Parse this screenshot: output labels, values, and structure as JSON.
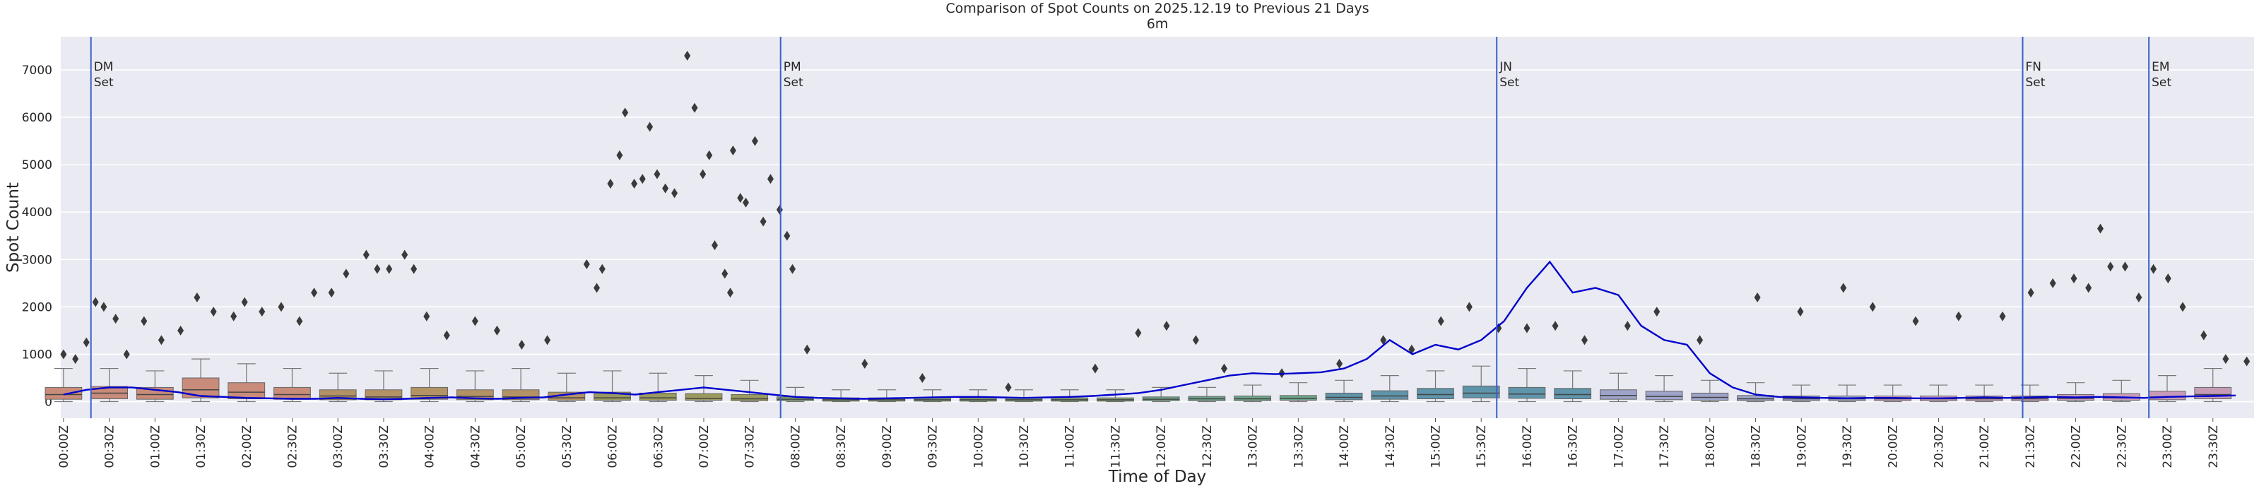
{
  "chart_data": {
    "type": "box",
    "title": "Comparison of Spot Counts on 2025.12.19 to Previous 21 Days",
    "subtitle": "6m",
    "xlabel": "Time of Day",
    "ylabel": "Spot Count",
    "xlim": [
      -0.03,
      23.95
    ],
    "ylim": [
      -350,
      7700
    ],
    "grid": true,
    "yticks": [
      0,
      1000,
      2000,
      3000,
      4000,
      5000,
      6000,
      7000
    ],
    "xticks": [
      {
        "value": 0,
        "label": "00:00Z"
      },
      {
        "value": 0.5,
        "label": "00:30Z"
      },
      {
        "value": 1,
        "label": "01:00Z"
      },
      {
        "value": 1.5,
        "label": "01:30Z"
      },
      {
        "value": 2,
        "label": "02:00Z"
      },
      {
        "value": 2.5,
        "label": "02:30Z"
      },
      {
        "value": 3,
        "label": "03:00Z"
      },
      {
        "value": 3.5,
        "label": "03:30Z"
      },
      {
        "value": 4,
        "label": "04:00Z"
      },
      {
        "value": 4.5,
        "label": "04:30Z"
      },
      {
        "value": 5,
        "label": "05:00Z"
      },
      {
        "value": 5.5,
        "label": "05:30Z"
      },
      {
        "value": 6,
        "label": "06:00Z"
      },
      {
        "value": 6.5,
        "label": "06:30Z"
      },
      {
        "value": 7,
        "label": "07:00Z"
      },
      {
        "value": 7.5,
        "label": "07:30Z"
      },
      {
        "value": 8,
        "label": "08:00Z"
      },
      {
        "value": 8.5,
        "label": "08:30Z"
      },
      {
        "value": 9,
        "label": "09:00Z"
      },
      {
        "value": 9.5,
        "label": "09:30Z"
      },
      {
        "value": 10,
        "label": "10:00Z"
      },
      {
        "value": 10.5,
        "label": "10:30Z"
      },
      {
        "value": 11,
        "label": "11:00Z"
      },
      {
        "value": 11.5,
        "label": "11:30Z"
      },
      {
        "value": 12,
        "label": "12:00Z"
      },
      {
        "value": 12.5,
        "label": "12:30Z"
      },
      {
        "value": 13,
        "label": "13:00Z"
      },
      {
        "value": 13.5,
        "label": "13:30Z"
      },
      {
        "value": 14,
        "label": "14:00Z"
      },
      {
        "value": 14.5,
        "label": "14:30Z"
      },
      {
        "value": 15,
        "label": "15:00Z"
      },
      {
        "value": 15.5,
        "label": "15:30Z"
      },
      {
        "value": 16,
        "label": "16:00Z"
      },
      {
        "value": 16.5,
        "label": "16:30Z"
      },
      {
        "value": 17,
        "label": "17:00Z"
      },
      {
        "value": 17.5,
        "label": "17:30Z"
      },
      {
        "value": 18,
        "label": "18:00Z"
      },
      {
        "value": 18.5,
        "label": "18:30Z"
      },
      {
        "value": 19,
        "label": "19:00Z"
      },
      {
        "value": 19.5,
        "label": "19:30Z"
      },
      {
        "value": 20,
        "label": "20:00Z"
      },
      {
        "value": 20.5,
        "label": "20:30Z"
      },
      {
        "value": 21,
        "label": "21:00Z"
      },
      {
        "value": 21.5,
        "label": "21:30Z"
      },
      {
        "value": 22,
        "label": "22:00Z"
      },
      {
        "value": 22.5,
        "label": "22:30Z"
      },
      {
        "value": 23,
        "label": "23:00Z"
      },
      {
        "value": 23.5,
        "label": "23:30Z"
      }
    ],
    "boxes": {
      "x": [
        0,
        0.5,
        1,
        1.5,
        2,
        2.5,
        3,
        3.5,
        4,
        4.5,
        5,
        5.5,
        6,
        6.5,
        7,
        7.5,
        8,
        8.5,
        9,
        9.5,
        10,
        10.5,
        11,
        11.5,
        12,
        12.5,
        13,
        13.5,
        14,
        14.5,
        15,
        15.5,
        16,
        16.5,
        17,
        17.5,
        18,
        18.5,
        19,
        19.5,
        20,
        20.5,
        21,
        21.5,
        22,
        22.5,
        23,
        23.5
      ],
      "whislo": [
        0,
        0,
        0,
        0,
        0,
        0,
        0,
        0,
        0,
        0,
        0,
        0,
        0,
        0,
        0,
        0,
        0,
        0,
        0,
        0,
        0,
        0,
        0,
        0,
        0,
        0,
        0,
        0,
        0,
        0,
        0,
        0,
        0,
        0,
        0,
        0,
        0,
        0,
        0,
        0,
        0,
        0,
        0,
        0,
        0,
        0,
        0,
        0
      ],
      "q1": [
        50,
        60,
        50,
        80,
        60,
        50,
        40,
        40,
        50,
        40,
        40,
        30,
        30,
        30,
        30,
        20,
        20,
        10,
        10,
        10,
        10,
        10,
        10,
        10,
        20,
        20,
        20,
        30,
        40,
        50,
        60,
        80,
        70,
        60,
        50,
        40,
        30,
        20,
        20,
        20,
        20,
        20,
        20,
        20,
        30,
        30,
        40,
        60
      ],
      "med": [
        150,
        180,
        150,
        250,
        200,
        150,
        120,
        100,
        130,
        110,
        100,
        80,
        80,
        80,
        70,
        60,
        50,
        40,
        40,
        40,
        40,
        40,
        40,
        40,
        50,
        60,
        60,
        70,
        90,
        120,
        150,
        180,
        160,
        150,
        130,
        110,
        90,
        60,
        60,
        60,
        60,
        60,
        60,
        60,
        70,
        80,
        100,
        150
      ],
      "q3": [
        300,
        320,
        300,
        500,
        400,
        300,
        250,
        250,
        300,
        250,
        250,
        200,
        200,
        180,
        170,
        150,
        100,
        80,
        80,
        80,
        80,
        80,
        80,
        80,
        100,
        110,
        120,
        130,
        180,
        230,
        280,
        330,
        300,
        280,
        250,
        220,
        180,
        130,
        120,
        120,
        120,
        120,
        120,
        120,
        150,
        170,
        220,
        300
      ],
      "whishi": [
        700,
        700,
        650,
        900,
        800,
        700,
        600,
        650,
        700,
        650,
        700,
        600,
        650,
        600,
        550,
        450,
        300,
        250,
        250,
        250,
        250,
        250,
        250,
        250,
        300,
        300,
        350,
        400,
        450,
        550,
        650,
        750,
        700,
        650,
        600,
        550,
        450,
        400,
        350,
        350,
        350,
        350,
        350,
        350,
        400,
        450,
        550,
        700
      ],
      "colors": [
        "#c98c7a",
        "#c98c7a",
        "#c98c7a",
        "#c98c7a",
        "#c98c7a",
        "#c98c7a",
        "#b39265",
        "#b39265",
        "#b39265",
        "#b39265",
        "#b39265",
        "#b39265",
        "#9a9a5e",
        "#9a9a5e",
        "#9a9a5e",
        "#9a9a5e",
        "#7fa36f",
        "#7fa36f",
        "#7fa36f",
        "#7fa36f",
        "#7fa36f",
        "#7fa36f",
        "#7fa36f",
        "#7fa36f",
        "#6da58a",
        "#6da58a",
        "#6da58a",
        "#6da58a",
        "#5f95ab",
        "#5f95ab",
        "#5f95ab",
        "#5f95ab",
        "#5f95ab",
        "#5f95ab",
        "#9ea3c9",
        "#9ea3c9",
        "#9ea3c9",
        "#9ea3c9",
        "#9ea3c9",
        "#9ea3c9",
        "#c79bb8",
        "#c79bb8",
        "#c79bb8",
        "#c79bb8",
        "#c79bb8",
        "#c79bb8",
        "#c79bb8",
        "#c79bb8"
      ]
    },
    "outliers": {
      "color": "#3a3a3a",
      "x": [
        0.0,
        0.13,
        0.25,
        0.35,
        0.44,
        0.57,
        0.69,
        0.88,
        1.07,
        1.28,
        1.46,
        1.64,
        1.86,
        1.98,
        2.17,
        2.38,
        2.58,
        2.74,
        2.93,
        3.09,
        3.31,
        3.43,
        3.56,
        3.73,
        3.83,
        3.97,
        4.19,
        4.5,
        4.74,
        5.01,
        5.29,
        5.72,
        5.83,
        5.89,
        5.98,
        6.08,
        6.14,
        6.24,
        6.33,
        6.41,
        6.49,
        6.58,
        6.68,
        6.82,
        6.9,
        6.99,
        7.06,
        7.12,
        7.23,
        7.29,
        7.32,
        7.4,
        7.46,
        7.56,
        7.65,
        7.73,
        7.83,
        7.91,
        7.97,
        8.13,
        8.76,
        9.39,
        10.33,
        11.28,
        11.75,
        12.06,
        12.38,
        12.69,
        13.32,
        13.95,
        14.43,
        14.74,
        15.06,
        15.37,
        15.69,
        16.0,
        16.31,
        16.63,
        17.1,
        17.42,
        17.89,
        18.52,
        18.99,
        19.46,
        19.78,
        20.25,
        20.72,
        21.2,
        21.51,
        21.75,
        21.98,
        22.14,
        22.27,
        22.38,
        22.54,
        22.69,
        22.85,
        23.01,
        23.17,
        23.4,
        23.64,
        23.87
      ],
      "y": [
        1000,
        900,
        1250,
        2100,
        2000,
        1750,
        1000,
        1700,
        1300,
        1500,
        2200,
        1900,
        1800,
        2100,
        1900,
        2000,
        1700,
        2300,
        2300,
        2700,
        3100,
        2800,
        2800,
        3100,
        2800,
        1800,
        1400,
        1700,
        1500,
        1200,
        1300,
        2900,
        2400,
        2800,
        4600,
        5200,
        6100,
        4600,
        4700,
        5800,
        4800,
        4500,
        4400,
        7300,
        6200,
        4800,
        5200,
        3300,
        2700,
        2300,
        5300,
        4300,
        4200,
        5500,
        3800,
        4700,
        4050,
        3500,
        2800,
        1100,
        800,
        500,
        300,
        700,
        1450,
        1600,
        1300,
        700,
        600,
        800,
        1300,
        1100,
        1700,
        2000,
        1550,
        1550,
        1600,
        1300,
        1600,
        1900,
        1300,
        2200,
        1900,
        2400,
        2000,
        1700,
        1800,
        1800,
        2300,
        2500,
        2600,
        2400,
        3650,
        2850,
        2850,
        2200,
        2800,
        2600,
        2000,
        1400,
        900,
        850
      ]
    },
    "line": {
      "color": "#0000cd",
      "x": [
        0,
        0.25,
        0.5,
        0.75,
        1,
        1.25,
        1.5,
        1.75,
        2,
        2.25,
        2.5,
        2.75,
        3,
        3.25,
        3.5,
        3.75,
        4,
        4.25,
        4.5,
        4.75,
        5,
        5.25,
        5.5,
        5.75,
        6,
        6.25,
        6.5,
        6.75,
        7,
        7.25,
        7.5,
        7.75,
        8,
        8.25,
        8.5,
        8.75,
        9,
        9.25,
        9.5,
        9.75,
        10,
        10.25,
        10.5,
        10.75,
        11,
        11.25,
        11.5,
        11.75,
        12,
        12.25,
        12.5,
        12.75,
        13,
        13.25,
        13.5,
        13.75,
        14,
        14.25,
        14.5,
        14.75,
        15,
        15.25,
        15.5,
        15.75,
        16,
        16.25,
        16.5,
        16.75,
        17,
        17.25,
        17.5,
        17.75,
        18,
        18.25,
        18.5,
        18.75,
        19,
        19.25,
        19.5,
        19.75,
        20,
        20.25,
        20.5,
        20.75,
        21,
        21.25,
        21.5,
        21.75,
        22,
        22.25,
        22.5,
        22.75,
        23,
        23.25,
        23.5,
        23.75
      ],
      "values": [
        150,
        250,
        300,
        300,
        250,
        200,
        120,
        100,
        80,
        70,
        60,
        60,
        80,
        60,
        50,
        60,
        80,
        90,
        70,
        60,
        80,
        90,
        150,
        200,
        180,
        150,
        200,
        250,
        300,
        250,
        200,
        150,
        100,
        80,
        70,
        60,
        70,
        80,
        90,
        100,
        100,
        90,
        80,
        90,
        100,
        120,
        150,
        180,
        250,
        350,
        450,
        550,
        600,
        580,
        600,
        620,
        700,
        900,
        1300,
        1000,
        1200,
        1100,
        1300,
        1700,
        2400,
        2950,
        2300,
        2400,
        2250,
        1600,
        1300,
        1200,
        600,
        300,
        150,
        100,
        90,
        80,
        70,
        80,
        80,
        70,
        70,
        80,
        90,
        80,
        90,
        100,
        90,
        100,
        90,
        80,
        100,
        110,
        120,
        130
      ]
    },
    "markers": [
      {
        "x": 0.3,
        "label": [
          "DM",
          "Set"
        ],
        "color": "#3a5fcd"
      },
      {
        "x": 7.84,
        "label": [
          "PM",
          "Set"
        ],
        "color": "#3a5fcd"
      },
      {
        "x": 15.67,
        "label": [
          "JN",
          "Set"
        ],
        "color": "#3a5fcd"
      },
      {
        "x": 21.42,
        "label": [
          "FN",
          "Set"
        ],
        "color": "#3a5fcd"
      },
      {
        "x": 22.8,
        "label": [
          "EM",
          "Set"
        ],
        "color": "#3a5fcd"
      }
    ]
  }
}
